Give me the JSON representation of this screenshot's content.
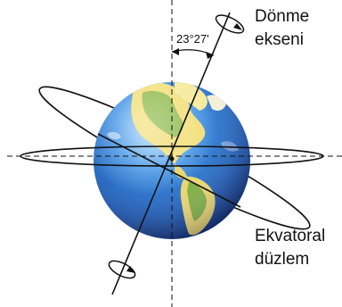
{
  "labels": {
    "axis_line1": "Dönme",
    "axis_line2": "ekseni",
    "angle": "23°27'",
    "plane_line1": "Ekvatoral",
    "plane_line2": "düzlem"
  },
  "colors": {
    "ocean_light": "#9fd3ff",
    "ocean_mid": "#2f7fd6",
    "ocean_dark": "#0c2f78",
    "land_light": "#f3e27a",
    "land_green": "#6fae3f",
    "line": "#111111"
  }
}
